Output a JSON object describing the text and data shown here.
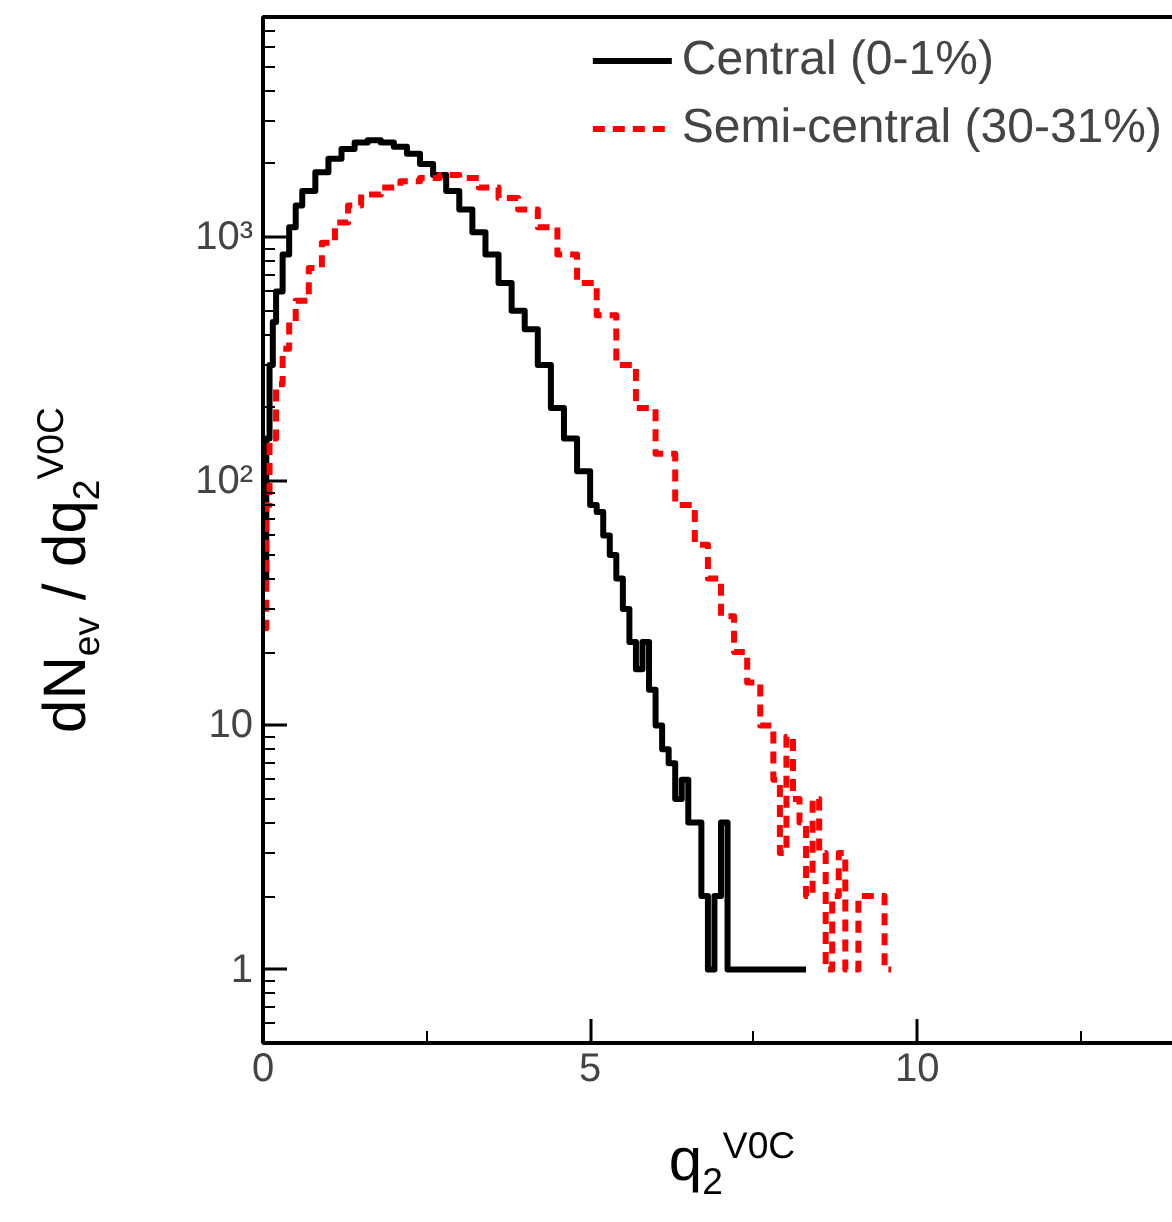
{
  "chart_data": {
    "type": "step",
    "xlabel": "q$_{2}$$^{V0C}$",
    "ylabel": "dN$_{ev}$ / dq$_{2}$$^{V0C}$",
    "log": "y",
    "grid": false,
    "legend": "top right",
    "xlim": [
      0,
      14
    ],
    "xticks": [
      0,
      5,
      10
    ],
    "ylim": [
      0.5,
      8000
    ],
    "yticks": [
      {
        "value": 1,
        "label": "1"
      },
      {
        "value": 10,
        "label": "10"
      },
      {
        "value": 100,
        "label": "10²"
      },
      {
        "value": 1000,
        "label": "10³"
      }
    ],
    "series": [
      {
        "name": "Central (0-1%)",
        "color": "#000000",
        "line_style": "solid",
        "x": [
          0,
          0.05,
          0.1,
          0.15,
          0.2,
          0.3,
          0.4,
          0.5,
          0.6,
          0.8,
          1.0,
          1.2,
          1.4,
          1.6,
          1.8,
          2.0,
          2.2,
          2.4,
          2.6,
          2.8,
          3.0,
          3.2,
          3.4,
          3.6,
          3.8,
          4.0,
          4.2,
          4.4,
          4.6,
          4.8,
          5.0,
          5.1,
          5.2,
          5.3,
          5.4,
          5.5,
          5.6,
          5.7,
          5.8,
          5.9,
          6.0,
          6.1,
          6.2,
          6.3,
          6.4,
          6.5,
          6.6,
          6.7,
          6.8,
          6.9,
          7.0,
          7.1,
          7.3,
          7.4,
          7.5,
          7.7,
          7.9,
          8.1,
          8.3
        ],
        "values": [
          40,
          150,
          300,
          450,
          600,
          850,
          1100,
          1350,
          1550,
          1850,
          2100,
          2300,
          2450,
          2500,
          2450,
          2350,
          2200,
          2000,
          1800,
          1550,
          1300,
          1050,
          850,
          650,
          500,
          420,
          300,
          200,
          150,
          110,
          80,
          75,
          60,
          50,
          40,
          30,
          22,
          17,
          22,
          14,
          10,
          8,
          7,
          5,
          6,
          4,
          4,
          2,
          1,
          2,
          4,
          1,
          1,
          1,
          1,
          1,
          1,
          1,
          1
        ]
      },
      {
        "name": "Semi-central (30-31%)",
        "color": "#ff0000",
        "line_style": "dashed",
        "x": [
          0,
          0.05,
          0.1,
          0.2,
          0.3,
          0.4,
          0.5,
          0.7,
          0.9,
          1.1,
          1.3,
          1.5,
          1.8,
          2.1,
          2.4,
          2.7,
          3.0,
          3.3,
          3.6,
          3.9,
          4.2,
          4.5,
          4.8,
          5.1,
          5.4,
          5.7,
          6.0,
          6.3,
          6.6,
          6.8,
          7.0,
          7.2,
          7.4,
          7.6,
          7.8,
          7.9,
          8.0,
          8.1,
          8.2,
          8.3,
          8.4,
          8.5,
          8.6,
          8.7,
          8.8,
          8.9,
          9.1,
          9.4,
          9.5,
          9.6
        ],
        "values": [
          25,
          80,
          150,
          250,
          350,
          450,
          550,
          750,
          950,
          1150,
          1350,
          1500,
          1600,
          1700,
          1750,
          1800,
          1750,
          1600,
          1450,
          1300,
          1100,
          850,
          650,
          480,
          300,
          200,
          130,
          80,
          55,
          40,
          28,
          20,
          15,
          10,
          6,
          3,
          9,
          5,
          4,
          2,
          5,
          3,
          1,
          2,
          3,
          1,
          2,
          2,
          1,
          1
        ]
      }
    ]
  }
}
